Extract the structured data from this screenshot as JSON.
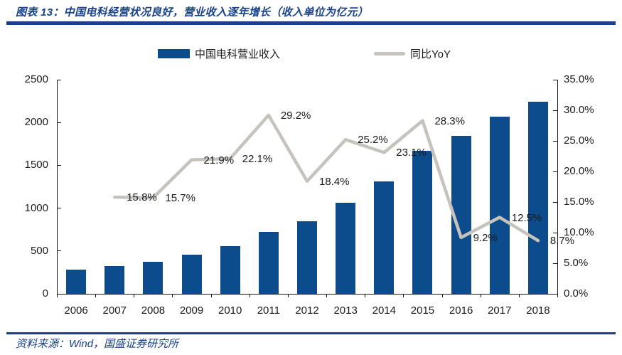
{
  "header": {
    "title": "图表 13：中国电科经营状况良好，营业收入逐年增长（收入单位为亿元）"
  },
  "footer": {
    "source": "资料来源：Wind，国盛证券研究所"
  },
  "colors": {
    "accent_navy": "#17418C",
    "bar_blue": "#0D4C8C",
    "line_gray": "#C6C3BD",
    "label_text": "#1A1A1A"
  },
  "chart_data": {
    "type": "bar",
    "subtype": "bar+line combo, dual axis",
    "title": "中国电科经营状况良好，营业收入逐年增长（收入单位为亿元）",
    "categories": [
      "2006",
      "2007",
      "2008",
      "2009",
      "2010",
      "2011",
      "2012",
      "2013",
      "2014",
      "2015",
      "2016",
      "2017",
      "2018"
    ],
    "series": [
      {
        "name": "中国电科营业收入",
        "type": "bar",
        "axis": "left",
        "values": [
          280,
          325,
          375,
          455,
          560,
          725,
          850,
          1065,
          1315,
          1670,
          1840,
          2065,
          2240
        ]
      },
      {
        "name": "同比YoY",
        "type": "line",
        "axis": "right",
        "values": [
          null,
          15.8,
          15.7,
          21.9,
          22.1,
          29.2,
          18.4,
          25.2,
          23.1,
          28.3,
          9.2,
          12.5,
          8.7
        ],
        "labels": [
          "",
          "15.8%",
          "15.7%",
          "21.9%",
          "22.1%",
          "29.2%",
          "18.4%",
          "25.2%",
          "23.1%",
          "28.3%",
          "9.2%",
          "12.5%",
          "8.7%"
        ]
      }
    ],
    "left_axis": {
      "min": 0,
      "max": 2500,
      "ticks": [
        0,
        500,
        1000,
        1500,
        2000,
        2500
      ],
      "labels": [
        "0",
        "500",
        "1000",
        "1500",
        "2000",
        "2500"
      ]
    },
    "right_axis": {
      "min": 0,
      "max": 35,
      "ticks": [
        0,
        5,
        10,
        15,
        20,
        25,
        30,
        35
      ],
      "labels": [
        "0.0%",
        "5.0%",
        "10.0%",
        "15.0%",
        "20.0%",
        "25.0%",
        "30.0%",
        "35.0%"
      ]
    },
    "legend_position": "top",
    "grid": false
  }
}
